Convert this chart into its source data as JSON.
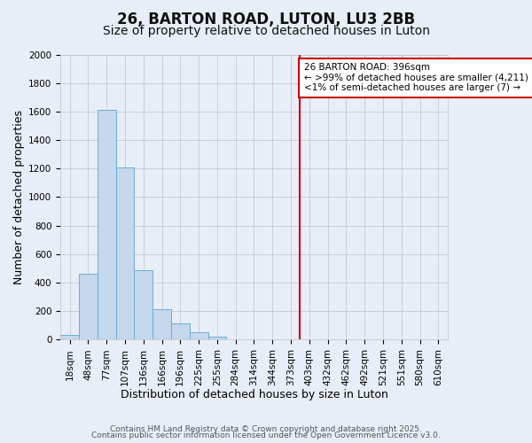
{
  "title": "26, BARTON ROAD, LUTON, LU3 2BB",
  "subtitle": "Size of property relative to detached houses in Luton",
  "xlabel": "Distribution of detached houses by size in Luton",
  "ylabel": "Number of detached properties",
  "bar_labels": [
    "18sqm",
    "48sqm",
    "77sqm",
    "107sqm",
    "136sqm",
    "166sqm",
    "196sqm",
    "225sqm",
    "255sqm",
    "284sqm",
    "314sqm",
    "344sqm",
    "373sqm",
    "403sqm",
    "432sqm",
    "462sqm",
    "492sqm",
    "521sqm",
    "551sqm",
    "580sqm",
    "610sqm"
  ],
  "bar_values": [
    35,
    460,
    1610,
    1210,
    490,
    215,
    115,
    50,
    20,
    0,
    0,
    0,
    0,
    0,
    0,
    0,
    0,
    0,
    0,
    0,
    0
  ],
  "bar_color": "#c5d8ed",
  "bar_edge_color": "#6baed6",
  "background_color": "#e8eef8",
  "plot_bg": "#e8eef8",
  "vline_color": "#cc0000",
  "vline_x_index": 13,
  "annotation_title": "26 BARTON ROAD: 396sqm",
  "annotation_line1": "← >99% of detached houses are smaller (4,211)",
  "annotation_line2": "<1% of semi-detached houses are larger (7) →",
  "annotation_box_color": "#ffffff",
  "annotation_border_color": "#cc0000",
  "ylim": [
    0,
    2000
  ],
  "yticks": [
    0,
    200,
    400,
    600,
    800,
    1000,
    1200,
    1400,
    1600,
    1800,
    2000
  ],
  "grid_color": "#c8c8c8",
  "footer1": "Contains HM Land Registry data © Crown copyright and database right 2025.",
  "footer2": "Contains public sector information licensed under the Open Government Licence v3.0.",
  "title_fontsize": 12,
  "subtitle_fontsize": 10,
  "axis_label_fontsize": 9,
  "tick_fontsize": 7.5,
  "footer_fontsize": 6.5
}
